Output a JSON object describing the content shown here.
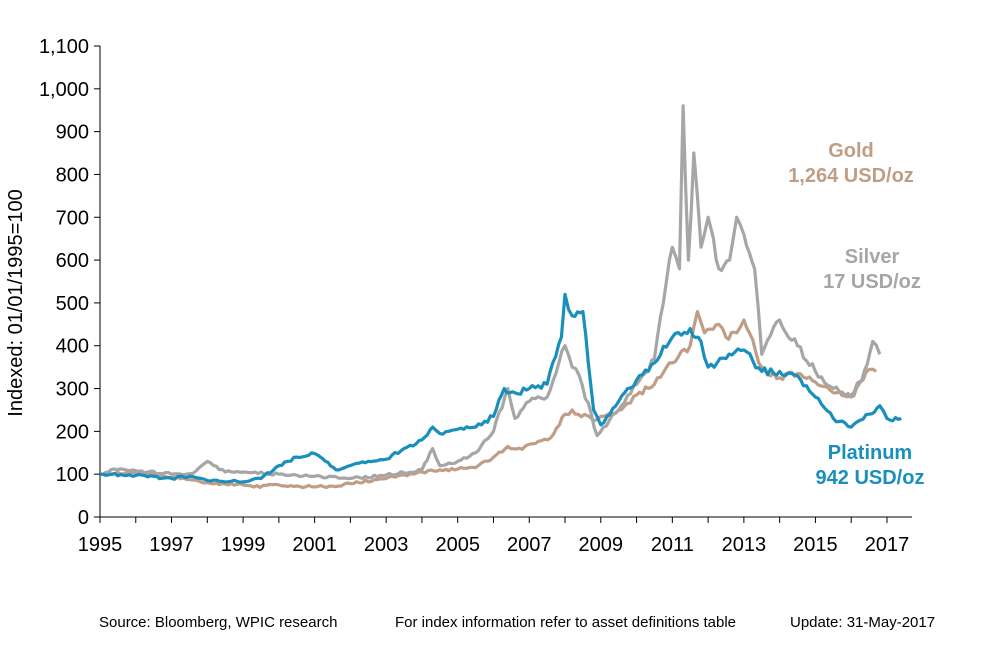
{
  "chart_data": {
    "type": "line",
    "ylabel": "Indexed: 01/01/1995=100",
    "xlabel": "",
    "xlim": [
      1995,
      2017.7
    ],
    "ylim": [
      0,
      1100
    ],
    "x_ticks": [
      "1995",
      "1997",
      "1999",
      "2001",
      "2003",
      "2005",
      "2007",
      "2009",
      "2011",
      "2013",
      "2015",
      "2017"
    ],
    "y_ticks": [
      "0",
      "100",
      "200",
      "300",
      "400",
      "500",
      "600",
      "700",
      "800",
      "900",
      "1,000",
      "1,100"
    ],
    "series": [
      {
        "name": "Gold",
        "color": "#c09e86",
        "x": [
          1995,
          1996,
          1997,
          1997.5,
          1998,
          1999,
          1999.3,
          2000,
          2001,
          2001.5,
          2002,
          2003,
          2004,
          2005,
          2005.5,
          2006,
          2006.4,
          2006.8,
          2007,
          2007.6,
          2008.0,
          2008.2,
          2008.8,
          2009,
          2009.5,
          2010,
          2010.5,
          2011,
          2011.5,
          2011.7,
          2011.9,
          2012.3,
          2012.5,
          2012.8,
          2013,
          2013.5,
          2014,
          2014.5,
          2015,
          2015.5,
          2016,
          2016.5,
          2016.7
        ],
        "y": [
          100,
          103,
          93,
          87,
          80,
          75,
          70,
          75,
          70,
          72,
          78,
          90,
          105,
          112,
          115,
          140,
          165,
          158,
          170,
          185,
          240,
          250,
          225,
          235,
          250,
          285,
          310,
          360,
          400,
          480,
          430,
          450,
          420,
          430,
          460,
          350,
          325,
          335,
          315,
          290,
          285,
          345,
          340
        ]
      },
      {
        "name": "Silver",
        "color": "#a6a6a6",
        "x": [
          1995,
          1995.4,
          1996,
          1997,
          1997.6,
          1998.0,
          1998.5,
          1999,
          2000,
          2001,
          2002,
          2003,
          2004,
          2004.3,
          2004.5,
          2005,
          2005.5,
          2006,
          2006.4,
          2006.6,
          2007,
          2007.5,
          2008.0,
          2008.2,
          2008.4,
          2008.9,
          2009.5,
          2010,
          2010.5,
          2011.0,
          2011.2,
          2011.3,
          2011.45,
          2011.6,
          2011.8,
          2012.0,
          2012.3,
          2012.6,
          2012.8,
          2013.0,
          2013.3,
          2013.5,
          2014,
          2014.5,
          2015,
          2015.5,
          2016,
          2016.3,
          2016.6,
          2016.8
        ],
        "y": [
          100,
          112,
          108,
          100,
          102,
          130,
          105,
          105,
          100,
          95,
          90,
          98,
          110,
          160,
          120,
          130,
          150,
          200,
          300,
          230,
          270,
          280,
          400,
          350,
          330,
          190,
          250,
          310,
          370,
          630,
          580,
          960,
          600,
          850,
          630,
          700,
          580,
          600,
          700,
          660,
          580,
          380,
          460,
          400,
          340,
          300,
          280,
          320,
          410,
          380
        ]
      },
      {
        "name": "Platinum",
        "color": "#1a8fbd",
        "x": [
          1995,
          1996,
          1997,
          1997.5,
          1998,
          1999,
          1999.5,
          2000,
          2000.5,
          2001,
          2001.3,
          2001.6,
          2002,
          2002.5,
          2003,
          2003.5,
          2004,
          2004.3,
          2004.5,
          2005,
          2005.5,
          2006,
          2006.3,
          2006.6,
          2007,
          2007.5,
          2007.9,
          2008.0,
          2008.2,
          2008.5,
          2008.8,
          2009,
          2009.5,
          2010,
          2010.5,
          2011,
          2011.5,
          2011.8,
          2012,
          2012.5,
          2013,
          2013.5,
          2014,
          2014.5,
          2015,
          2015.5,
          2016,
          2016.5,
          2016.8,
          2017,
          2017.4
        ],
        "y": [
          100,
          97,
          90,
          95,
          85,
          82,
          90,
          120,
          140,
          148,
          130,
          110,
          120,
          130,
          135,
          160,
          180,
          210,
          195,
          205,
          210,
          235,
          300,
          290,
          300,
          310,
          420,
          520,
          470,
          480,
          250,
          215,
          270,
          320,
          360,
          420,
          440,
          410,
          350,
          370,
          390,
          340,
          340,
          330,
          280,
          230,
          210,
          240,
          260,
          230,
          230
        ]
      }
    ],
    "annotations": [
      {
        "series": "Gold",
        "line1": "Gold",
        "line2": "1,264 USD/oz",
        "color": "#c09e86"
      },
      {
        "series": "Silver",
        "line1": "Silver",
        "line2": "17 USD/oz",
        "color": "#a6a6a6"
      },
      {
        "series": "Platinum",
        "line1": "Platinum",
        "line2": "942 USD/oz",
        "color": "#1a8fbd"
      }
    ]
  },
  "footer": {
    "source": "Source: Bloomberg, WPIC research",
    "note": "For index information refer to asset definitions table",
    "update": "Update: 31-May-2017"
  }
}
